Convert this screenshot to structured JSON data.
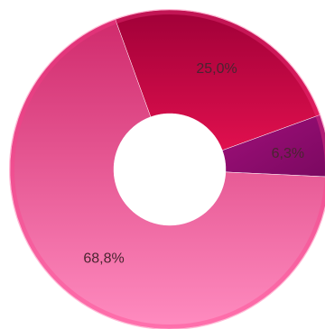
{
  "chart_data": {
    "type": "pie",
    "variant": "donut",
    "title": "",
    "slices": [
      {
        "value": 25.0,
        "label": "25,0%",
        "color": "#c8083f"
      },
      {
        "value": 6.3,
        "label": "6,3%",
        "color": "#8e0a6e"
      },
      {
        "value": 68.8,
        "label": "68,8%",
        "color": "#f2478f"
      }
    ],
    "legend": "none"
  }
}
